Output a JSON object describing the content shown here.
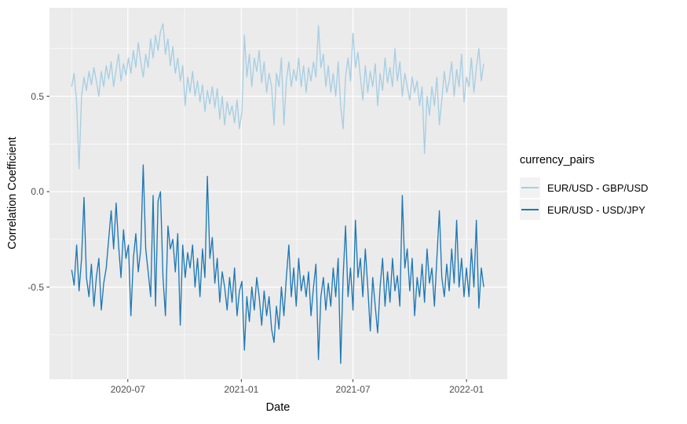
{
  "chart_data": {
    "type": "line",
    "title": "",
    "xlabel": "Date",
    "ylabel": "Correlation Coefficient",
    "legend_title": "currency_pairs",
    "legend_position": "right",
    "grid": true,
    "x_start_date": "2020-04-01",
    "x_step_days": 4,
    "xlim_days": [
      -36,
      706
    ],
    "ylim": [
      -0.983,
      0.963
    ],
    "x_ticks": [
      {
        "label": "2020-07",
        "day": 91
      },
      {
        "label": "2021-01",
        "day": 275
      },
      {
        "label": "2021-07",
        "day": 456
      },
      {
        "label": "2022-01",
        "day": 640
      }
    ],
    "y_ticks": [
      {
        "label": "0.5",
        "value": 0.5
      },
      {
        "label": "0.0",
        "value": 0.0
      },
      {
        "label": "-0.5",
        "value": -0.5
      }
    ],
    "x_minor_days": [
      0,
      183,
      365,
      548
    ],
    "y_minor_values": [
      0.75,
      0.25,
      -0.25,
      -0.75
    ],
    "series": [
      {
        "name": "EUR/USD - GBP/USD",
        "color": "#A6CEE3",
        "values": [
          0.55,
          0.62,
          0.47,
          0.12,
          0.5,
          0.6,
          0.53,
          0.63,
          0.56,
          0.65,
          0.58,
          0.5,
          0.63,
          0.55,
          0.66,
          0.59,
          0.68,
          0.55,
          0.64,
          0.72,
          0.58,
          0.67,
          0.61,
          0.7,
          0.62,
          0.74,
          0.65,
          0.78,
          0.68,
          0.6,
          0.72,
          0.65,
          0.8,
          0.7,
          0.82,
          0.74,
          0.84,
          0.88,
          0.72,
          0.8,
          0.66,
          0.76,
          0.62,
          0.7,
          0.58,
          0.66,
          0.45,
          0.6,
          0.52,
          0.63,
          0.5,
          0.58,
          0.47,
          0.56,
          0.42,
          0.53,
          0.46,
          0.55,
          0.44,
          0.54,
          0.38,
          0.5,
          0.35,
          0.47,
          0.4,
          0.45,
          0.36,
          0.48,
          0.33,
          0.42,
          0.82,
          0.6,
          0.72,
          0.55,
          0.7,
          0.63,
          0.74,
          0.57,
          0.68,
          0.52,
          0.62,
          0.55,
          0.35,
          0.62,
          0.55,
          0.7,
          0.35,
          0.58,
          0.68,
          0.55,
          0.64,
          0.58,
          0.7,
          0.55,
          0.66,
          0.52,
          0.65,
          0.58,
          0.68,
          0.6,
          0.87,
          0.65,
          0.72,
          0.55,
          0.66,
          0.52,
          0.62,
          0.5,
          0.68,
          0.45,
          0.33,
          0.6,
          0.7,
          0.58,
          0.83,
          0.65,
          0.73,
          0.6,
          0.48,
          0.66,
          0.52,
          0.63,
          0.55,
          0.67,
          0.45,
          0.62,
          0.53,
          0.7,
          0.57,
          0.65,
          0.55,
          0.75,
          0.58,
          0.68,
          0.5,
          0.62,
          0.55,
          0.48,
          0.6,
          0.52,
          0.58,
          0.45,
          0.55,
          0.2,
          0.5,
          0.4,
          0.55,
          0.45,
          0.6,
          0.35,
          0.48,
          0.63,
          0.52,
          0.58,
          0.68,
          0.5,
          0.64,
          0.55,
          0.72,
          0.47,
          0.6,
          0.55,
          0.7,
          0.52,
          0.65,
          0.75,
          0.58,
          0.67
        ]
      },
      {
        "name": "EUR/USD - USD/JPY",
        "color": "#1F78B4",
        "values": [
          -0.41,
          -0.49,
          -0.28,
          -0.52,
          -0.35,
          -0.03,
          -0.45,
          -0.55,
          -0.38,
          -0.6,
          -0.45,
          -0.35,
          -0.62,
          -0.48,
          -0.4,
          -0.25,
          -0.1,
          -0.3,
          -0.06,
          -0.28,
          -0.45,
          -0.2,
          -0.35,
          -0.28,
          -0.65,
          -0.35,
          -0.22,
          -0.42,
          -0.3,
          0.14,
          -0.3,
          -0.42,
          -0.55,
          -0.02,
          -0.6,
          -0.05,
          0.0,
          -0.45,
          -0.65,
          -0.18,
          -0.3,
          -0.25,
          -0.42,
          -0.22,
          -0.7,
          -0.28,
          -0.45,
          -0.32,
          -0.4,
          -0.28,
          -0.5,
          -0.35,
          -0.55,
          -0.3,
          -0.45,
          0.08,
          -0.35,
          -0.24,
          -0.48,
          -0.35,
          -0.58,
          -0.42,
          -0.5,
          -0.62,
          -0.45,
          -0.58,
          -0.4,
          -0.65,
          -0.52,
          -0.47,
          -0.83,
          -0.55,
          -0.68,
          -0.5,
          -0.62,
          -0.45,
          -0.55,
          -0.7,
          -0.52,
          -0.65,
          -0.55,
          -0.72,
          -0.79,
          -0.6,
          -0.72,
          -0.5,
          -0.65,
          -0.45,
          -0.28,
          -0.55,
          -0.4,
          -0.6,
          -0.35,
          -0.52,
          -0.44,
          -0.55,
          -0.42,
          -0.65,
          -0.5,
          -0.38,
          -0.88,
          -0.55,
          -0.45,
          -0.62,
          -0.48,
          -0.6,
          -0.4,
          -0.55,
          -0.35,
          -0.9,
          -0.45,
          -0.18,
          -0.55,
          -0.4,
          -0.62,
          -0.15,
          -0.45,
          -0.35,
          -0.55,
          -0.3,
          -0.5,
          -0.73,
          -0.45,
          -0.6,
          -0.74,
          -0.5,
          -0.35,
          -0.6,
          -0.42,
          -0.58,
          -0.35,
          -0.52,
          -0.44,
          -0.6,
          -0.02,
          -0.4,
          -0.3,
          -0.52,
          -0.35,
          -0.65,
          -0.45,
          -0.55,
          -0.38,
          -0.58,
          -0.3,
          -0.48,
          -0.4,
          -0.6,
          -0.35,
          -0.1,
          -0.45,
          -0.55,
          -0.38,
          -0.52,
          -0.3,
          -0.48,
          -0.15,
          -0.5,
          -0.35,
          -0.55,
          -0.4,
          -0.55,
          -0.3,
          -0.5,
          -0.15,
          -0.61,
          -0.4,
          -0.5
        ]
      }
    ]
  },
  "theme": {
    "panel_bg": "#EBEBEB",
    "grid_color": "#FFFFFF",
    "tick_mark_color": "#333333",
    "tick_text_color": "#4D4D4D",
    "axis_title_color": "#000000",
    "legend_key_bg": "#F2F2F2"
  }
}
